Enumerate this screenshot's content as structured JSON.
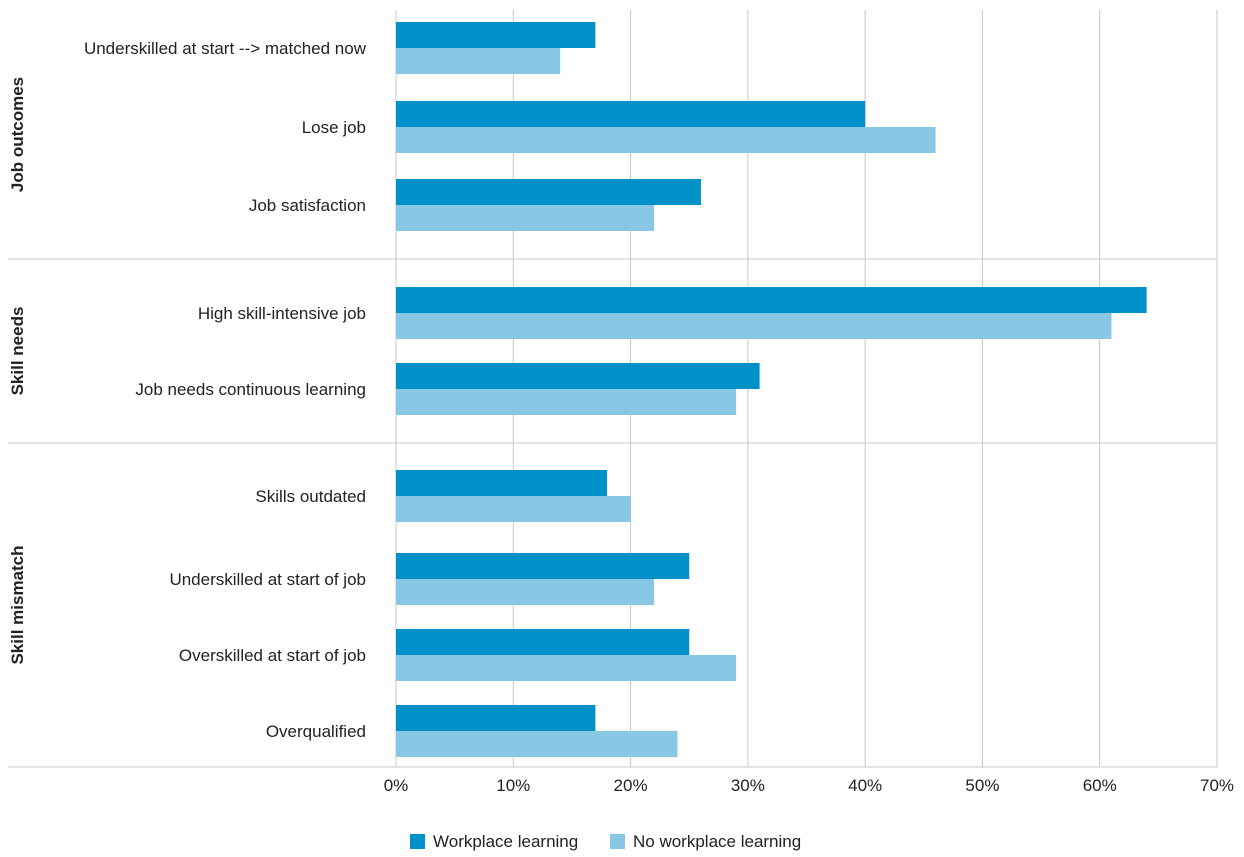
{
  "chart_data": {
    "type": "bar",
    "orientation": "horizontal",
    "title": "",
    "xlabel": "",
    "ylabel": "",
    "xlim": [
      0,
      0.7
    ],
    "x_ticks": [
      0,
      0.1,
      0.2,
      0.3,
      0.4,
      0.5,
      0.6,
      0.7
    ],
    "x_tick_labels": [
      "0%",
      "10%",
      "20%",
      "30%",
      "40%",
      "50%",
      "60%",
      "70%"
    ],
    "grid": true,
    "legend_position": "bottom",
    "groups": [
      {
        "label": "Job outcomes",
        "categories": [
          "Underskilled at start --> matched now",
          "Lose job",
          "Job satisfaction"
        ]
      },
      {
        "label": "Skill needs",
        "categories": [
          "High skill-intensive job",
          "Job needs continuous learning"
        ]
      },
      {
        "label": "Skill mismatch",
        "categories": [
          "Skills outdated",
          "Underskilled at start of job",
          "Overskilled at start of job",
          "Overqualified"
        ]
      }
    ],
    "series": [
      {
        "name": "Workplace learning",
        "color": "#0091c8",
        "values": [
          0.17,
          0.4,
          0.26,
          0.64,
          0.31,
          0.18,
          0.25,
          0.25,
          0.17
        ]
      },
      {
        "name": "No workplace learning",
        "color": "#88c8e4",
        "values": [
          0.14,
          0.46,
          0.22,
          0.61,
          0.29,
          0.2,
          0.22,
          0.29,
          0.24
        ]
      }
    ]
  }
}
